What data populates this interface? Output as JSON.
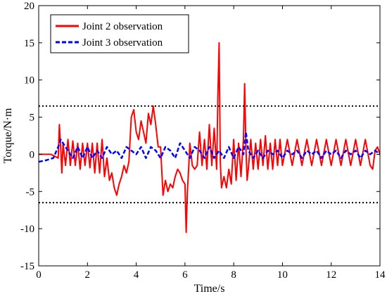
{
  "chart_data": {
    "type": "line",
    "title": "",
    "xlabel": "Time/s",
    "ylabel": "Torque/N·m",
    "xlim": [
      0,
      14
    ],
    "ylim": [
      -15,
      20
    ],
    "xticks": [
      0,
      2,
      4,
      6,
      8,
      10,
      12,
      14
    ],
    "yticks": [
      -15,
      -10,
      -5,
      0,
      5,
      10,
      15,
      20
    ],
    "grid": false,
    "legend_position": "top-left",
    "thresholds": [
      {
        "y": 6.5,
        "style": "dotted",
        "color": "#000000"
      },
      {
        "y": -6.5,
        "style": "dotted",
        "color": "#000000"
      }
    ],
    "series": [
      {
        "name": "Joint 2 observation",
        "color": "#ff0000",
        "style": "solid",
        "x": [
          0,
          0.5,
          0.8,
          0.85,
          0.9,
          0.95,
          1.0,
          1.1,
          1.2,
          1.3,
          1.4,
          1.5,
          1.6,
          1.7,
          1.8,
          1.9,
          2.0,
          2.1,
          2.2,
          2.3,
          2.4,
          2.5,
          2.6,
          2.7,
          2.8,
          2.9,
          3.0,
          3.1,
          3.2,
          3.3,
          3.4,
          3.5,
          3.6,
          3.7,
          3.8,
          3.9,
          4.0,
          4.1,
          4.2,
          4.3,
          4.4,
          4.5,
          4.6,
          4.7,
          4.8,
          4.9,
          5.0,
          5.1,
          5.2,
          5.3,
          5.4,
          5.5,
          5.6,
          5.7,
          5.8,
          5.9,
          6.0,
          6.05,
          6.1,
          6.15,
          6.2,
          6.3,
          6.4,
          6.5,
          6.6,
          6.7,
          6.8,
          6.9,
          7.0,
          7.1,
          7.2,
          7.3,
          7.35,
          7.4,
          7.45,
          7.5,
          7.6,
          7.7,
          7.8,
          7.9,
          8.0,
          8.1,
          8.2,
          8.3,
          8.4,
          8.45,
          8.5,
          8.55,
          8.6,
          8.7,
          8.8,
          8.9,
          9.0,
          9.1,
          9.2,
          9.3,
          9.4,
          9.5,
          9.6,
          9.7,
          9.8,
          9.9,
          10.0,
          10.2,
          10.4,
          10.6,
          10.8,
          11.0,
          11.2,
          11.4,
          11.6,
          11.8,
          12.0,
          12.2,
          12.4,
          12.6,
          12.8,
          13.0,
          13.2,
          13.4,
          13.6,
          13.7,
          13.8,
          13.9,
          14.0
        ],
        "y": [
          0,
          0,
          -0.5,
          4,
          1,
          -2.5,
          1.5,
          -1.5,
          2,
          -1.5,
          1.8,
          -1.5,
          1.5,
          -2,
          1.5,
          -1.5,
          1.5,
          -1.8,
          1.5,
          -2.5,
          1.5,
          -2.5,
          2,
          -3,
          -0.5,
          -3.5,
          -2.5,
          -4.5,
          -5.5,
          -4,
          -3,
          -1.5,
          -2.5,
          -1,
          5,
          6,
          3,
          2,
          4.5,
          3,
          1.5,
          5.5,
          4,
          6.5,
          4,
          1,
          1,
          -5.5,
          -3.5,
          -5,
          -4,
          -4.5,
          -3,
          -2,
          -2.5,
          -3.5,
          -4,
          -10.5,
          -5,
          -2,
          1.5,
          -1.5,
          -2,
          -1.5,
          3,
          -1.5,
          2,
          -2,
          4,
          -1.5,
          3.5,
          -2,
          7.5,
          15,
          -1,
          -4.5,
          -3,
          -4.5,
          -2,
          -4,
          2,
          -3.5,
          1.5,
          -3,
          2,
          9.5,
          1,
          -3.5,
          -2,
          2,
          -2,
          1.5,
          -2,
          2,
          -1.5,
          2.5,
          -2,
          1.5,
          -2,
          2,
          -1.5,
          2,
          -1.5,
          2,
          -1.5,
          2,
          -1.5,
          2,
          -1.5,
          2,
          -1.5,
          2,
          -1.5,
          2,
          -1.5,
          2,
          -1.5,
          2,
          -1.5,
          2,
          -1.5,
          -2,
          0.5,
          1,
          0
        ]
      },
      {
        "name": "Joint 3 observation",
        "color": "#0000ff",
        "style": "dashed",
        "x": [
          0,
          0.3,
          0.6,
          0.8,
          0.9,
          1.0,
          1.2,
          1.4,
          1.6,
          1.8,
          2.0,
          2.2,
          2.4,
          2.6,
          2.8,
          3.0,
          3.2,
          3.4,
          3.6,
          3.8,
          4.0,
          4.2,
          4.4,
          4.6,
          4.8,
          5.0,
          5.2,
          5.4,
          5.6,
          5.8,
          6.0,
          6.2,
          6.4,
          6.6,
          6.8,
          7.0,
          7.2,
          7.4,
          7.6,
          7.8,
          8.0,
          8.2,
          8.4,
          8.5,
          8.6,
          8.8,
          9.0,
          9.2,
          9.4,
          9.6,
          9.8,
          10.0,
          10.2,
          10.4,
          10.6,
          10.8,
          11.0,
          11.2,
          11.4,
          11.6,
          11.8,
          12.0,
          12.2,
          12.4,
          12.6,
          12.8,
          13.0,
          13.2,
          13.4,
          13.6,
          13.8,
          14.0
        ],
        "y": [
          -1,
          -0.8,
          -0.5,
          1,
          2,
          1.5,
          0.5,
          -0.5,
          1,
          -0.5,
          1,
          -0.5,
          0.5,
          -0.5,
          1,
          0,
          0.5,
          -0.5,
          1,
          0.5,
          0,
          1,
          -0.5,
          1,
          0.5,
          -0.5,
          1,
          0.5,
          -0.5,
          1.5,
          0.5,
          -0.5,
          1,
          0.5,
          -0.5,
          1,
          -0.5,
          0.5,
          -0.5,
          1,
          -0.5,
          1,
          0,
          3,
          0.5,
          -0.5,
          0.5,
          -0.5,
          0.5,
          0,
          0.5,
          -0.5,
          0.5,
          0,
          0.5,
          -0.5,
          0.5,
          0,
          0.5,
          -0.5,
          0.5,
          0,
          0.5,
          -0.5,
          0.5,
          0,
          0.5,
          -0.5,
          0.5,
          0,
          0.5,
          0
        ]
      }
    ]
  }
}
